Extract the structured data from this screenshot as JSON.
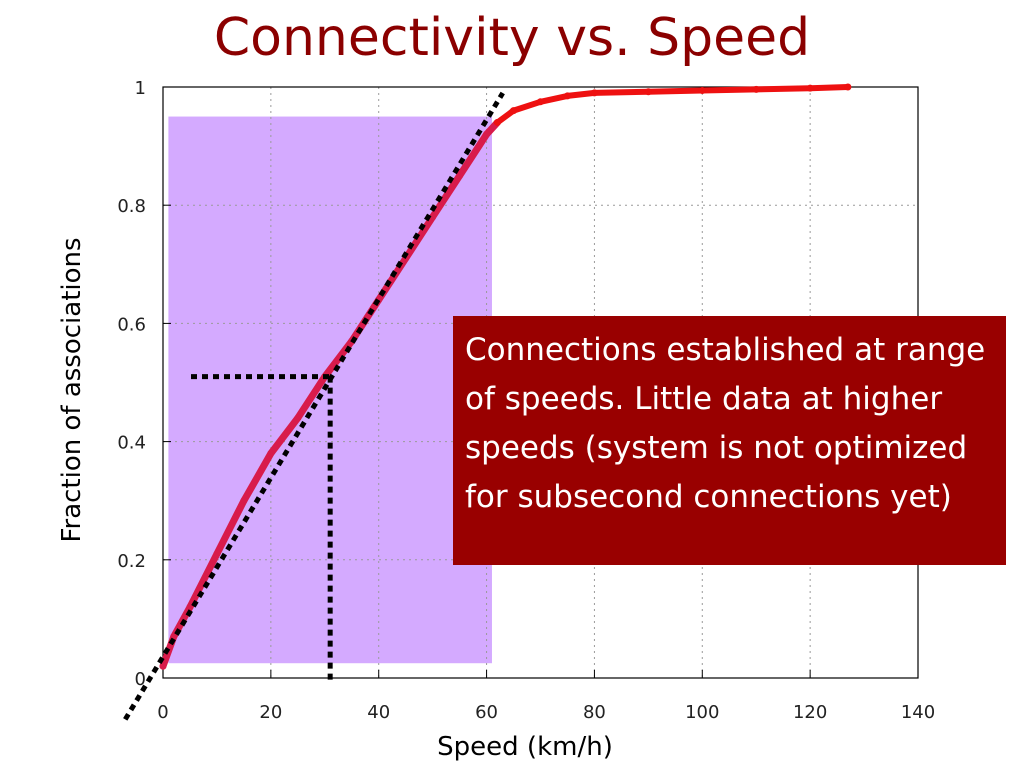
{
  "slide": {
    "title": "Connectivity vs. Speed",
    "callout": "Connections established at range of speeds. Little data at higher speeds (system is not optimized for subsecond connections yet)"
  },
  "colors": {
    "title": "#8b0000",
    "curve": "#ee1111",
    "curve_in_band": "#d81b4b",
    "band": "#d4aaff",
    "callout_bg": "#990000",
    "callout_text": "#ffffff",
    "guides": "#000000"
  },
  "chart_data": {
    "type": "line",
    "xlabel": "Speed (km/h)",
    "ylabel": "Fraction of associations",
    "xlim": [
      0,
      140
    ],
    "ylim": [
      0,
      1
    ],
    "xticks": [
      0,
      20,
      40,
      60,
      80,
      100,
      120,
      140
    ],
    "yticks": [
      0,
      0.2,
      0.4,
      0.6,
      0.8,
      1
    ],
    "xtick_labels": [
      "0",
      "20",
      "40",
      "60",
      "80",
      "100",
      "120",
      "140"
    ],
    "ytick_labels": [
      "0",
      "0.2",
      "0.4",
      "0.6",
      "0.8",
      "1"
    ],
    "grid": true,
    "series": [
      {
        "values_x": [
          0,
          2,
          5,
          10,
          15,
          20,
          25,
          30,
          35,
          40,
          45,
          50,
          55,
          60,
          62,
          65,
          70,
          75,
          80,
          90,
          100,
          110,
          120,
          127
        ],
        "values_y": [
          0.02,
          0.07,
          0.12,
          0.21,
          0.3,
          0.38,
          0.44,
          0.51,
          0.57,
          0.64,
          0.71,
          0.78,
          0.85,
          0.92,
          0.94,
          0.96,
          0.975,
          0.985,
          0.99,
          0.992,
          0.994,
          0.996,
          0.998,
          1.0
        ]
      }
    ],
    "highlight_band": {
      "x": [
        1,
        61
      ],
      "y": [
        0.025,
        0.95
      ]
    },
    "fit_line": {
      "x": [
        -7,
        63
      ],
      "y": [
        -0.07,
        1.0
      ]
    },
    "guide_point": {
      "x": 31,
      "y": 0.51
    }
  }
}
